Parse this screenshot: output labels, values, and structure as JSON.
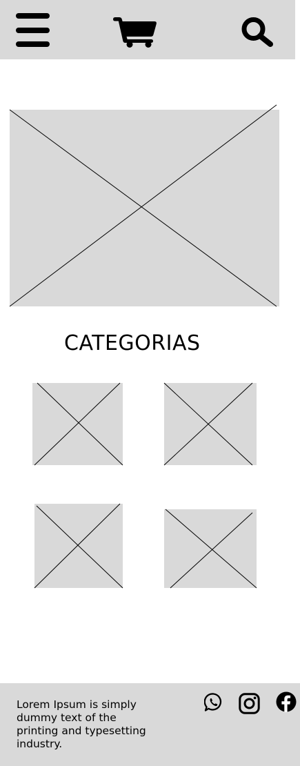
{
  "header": {
    "menu_icon": "menu-icon",
    "cart_icon": "cart-icon",
    "search_icon": "search-icon",
    "background": "#d9d9d9"
  },
  "hero": {
    "icon": "image-placeholder"
  },
  "categories": {
    "title": "CATEGORIAS",
    "items": [
      {
        "icon": "image-placeholder"
      },
      {
        "icon": "image-placeholder"
      },
      {
        "icon": "image-placeholder"
      },
      {
        "icon": "image-placeholder"
      }
    ]
  },
  "footer": {
    "text": "Lorem Ipsum is simply dummy text of the printing and typesetting industry.",
    "social": [
      "whatsapp-icon",
      "instagram-icon",
      "facebook-icon"
    ],
    "background": "#d9d9d9"
  }
}
